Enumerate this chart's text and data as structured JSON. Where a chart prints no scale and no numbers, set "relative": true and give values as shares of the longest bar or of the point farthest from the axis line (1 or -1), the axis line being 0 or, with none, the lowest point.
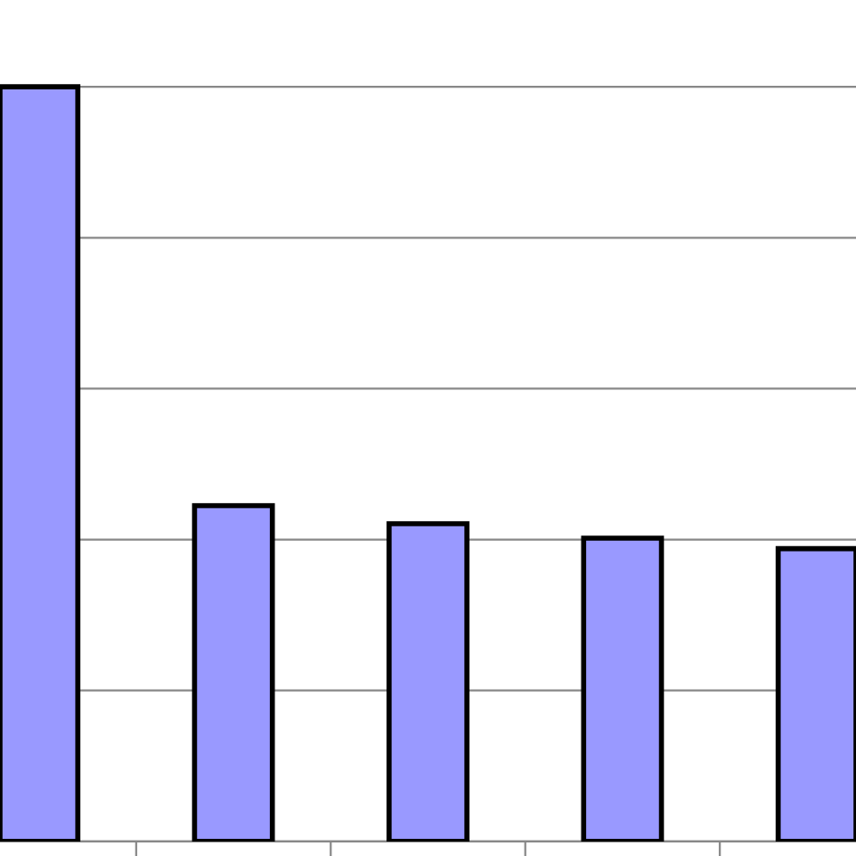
{
  "chart_data": {
    "type": "bar",
    "relative": true,
    "categories": [
      null,
      null,
      null,
      null,
      null
    ],
    "series": [
      {
        "color": "#9999ff",
        "values": [
          1,
          0.445,
          0.421,
          0.402,
          0.388
        ]
      }
    ],
    "grid": "y"
  }
}
